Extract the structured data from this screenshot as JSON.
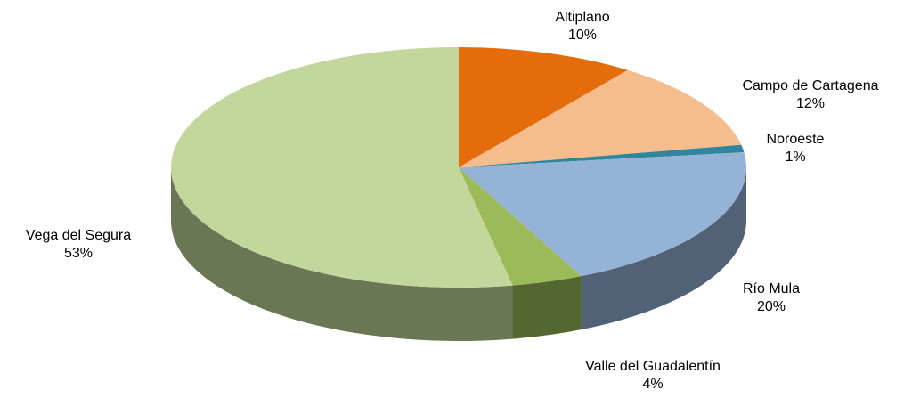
{
  "chart_data": {
    "type": "pie3d",
    "categories": [
      "Altiplano",
      "Campo de Cartagena",
      "Noroeste",
      "Río Mula",
      "Valle del Guadalentín",
      "Vega del Segura"
    ],
    "values": [
      10,
      12,
      1,
      20,
      4,
      53
    ],
    "value_labels": [
      "10%",
      "12%",
      "1%",
      "20%",
      "4%",
      "53%"
    ],
    "colors": [
      "#e46c0a",
      "#f5bc8d",
      "#31859c",
      "#95b3d7",
      "#9bbb59",
      "#c3d69b"
    ]
  }
}
